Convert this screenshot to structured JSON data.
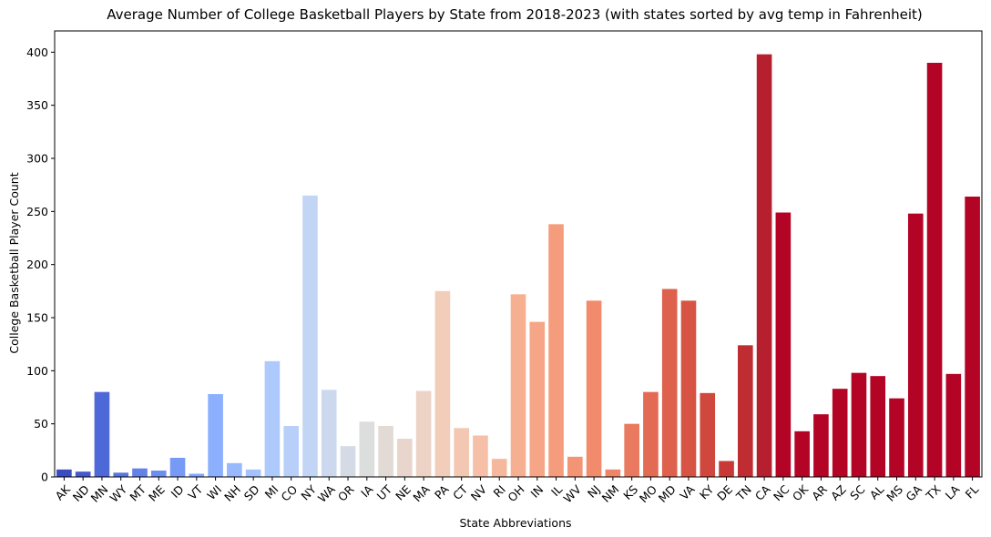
{
  "chart_data": {
    "type": "bar",
    "title": "Average Number of College Basketball Players by State from 2018-2023 (with states sorted by avg temp in Fahrenheit)",
    "xlabel": "State Abbreviations",
    "ylabel": "College Basketball Player Count",
    "ylim": [
      0,
      420
    ],
    "yticks": [
      0,
      50,
      100,
      150,
      200,
      250,
      300,
      350,
      400
    ],
    "categories": [
      "AK",
      "ND",
      "MN",
      "WY",
      "MT",
      "ME",
      "ID",
      "VT",
      "WI",
      "NH",
      "SD",
      "MI",
      "CO",
      "NY",
      "WA",
      "OR",
      "IA",
      "UT",
      "NE",
      "MA",
      "PA",
      "CT",
      "NV",
      "RI",
      "OH",
      "IN",
      "IL",
      "WV",
      "NJ",
      "NM",
      "KS",
      "MO",
      "MD",
      "VA",
      "KY",
      "DE",
      "TN",
      "CA",
      "NC",
      "OK",
      "AR",
      "AZ",
      "SC",
      "AL",
      "MS",
      "GA",
      "TX",
      "LA",
      "FL"
    ],
    "values": [
      7,
      5,
      80,
      4,
      8,
      6,
      18,
      3,
      78,
      13,
      7,
      109,
      48,
      265,
      82,
      29,
      52,
      48,
      36,
      81,
      175,
      46,
      39,
      17,
      172,
      146,
      238,
      19,
      166,
      7,
      50,
      80,
      177,
      166,
      79,
      15,
      124,
      398,
      249,
      43,
      59,
      83,
      98,
      95,
      74,
      248,
      390,
      97,
      264
    ],
    "colors": [
      "#3b4cc0",
      "#445acc",
      "#4d68d7",
      "#5775e1",
      "#6282ea",
      "#6c8ef1",
      "#779af7",
      "#82a6fb",
      "#8db0fe",
      "#98b9ff",
      "#a3c2fe",
      "#aec9fc",
      "#b8d0f9",
      "#c2d5f4",
      "#cbd8ee",
      "#d4dbe6",
      "#dcdddd",
      "#e2dad5",
      "#e8d6cc",
      "#ecd3c5",
      "#f1cdba",
      "#f3c7b1",
      "#f5c0a7",
      "#f6b89c",
      "#f7af91",
      "#f6a586",
      "#f59c7d",
      "#f39475",
      "#f18b6b",
      "#ee8468",
      "#e97a5f",
      "#e36b54",
      "#de614d",
      "#d75445",
      "#d0473d",
      "#c83836",
      "#bf2d32",
      "#b6202e",
      "#b40426",
      "#b40426",
      "#b40426",
      "#b40426",
      "#b40426",
      "#b40426",
      "#b40426",
      "#b40426",
      "#b40426",
      "#b40426",
      "#b40426"
    ],
    "grid": false,
    "legend": "none"
  }
}
